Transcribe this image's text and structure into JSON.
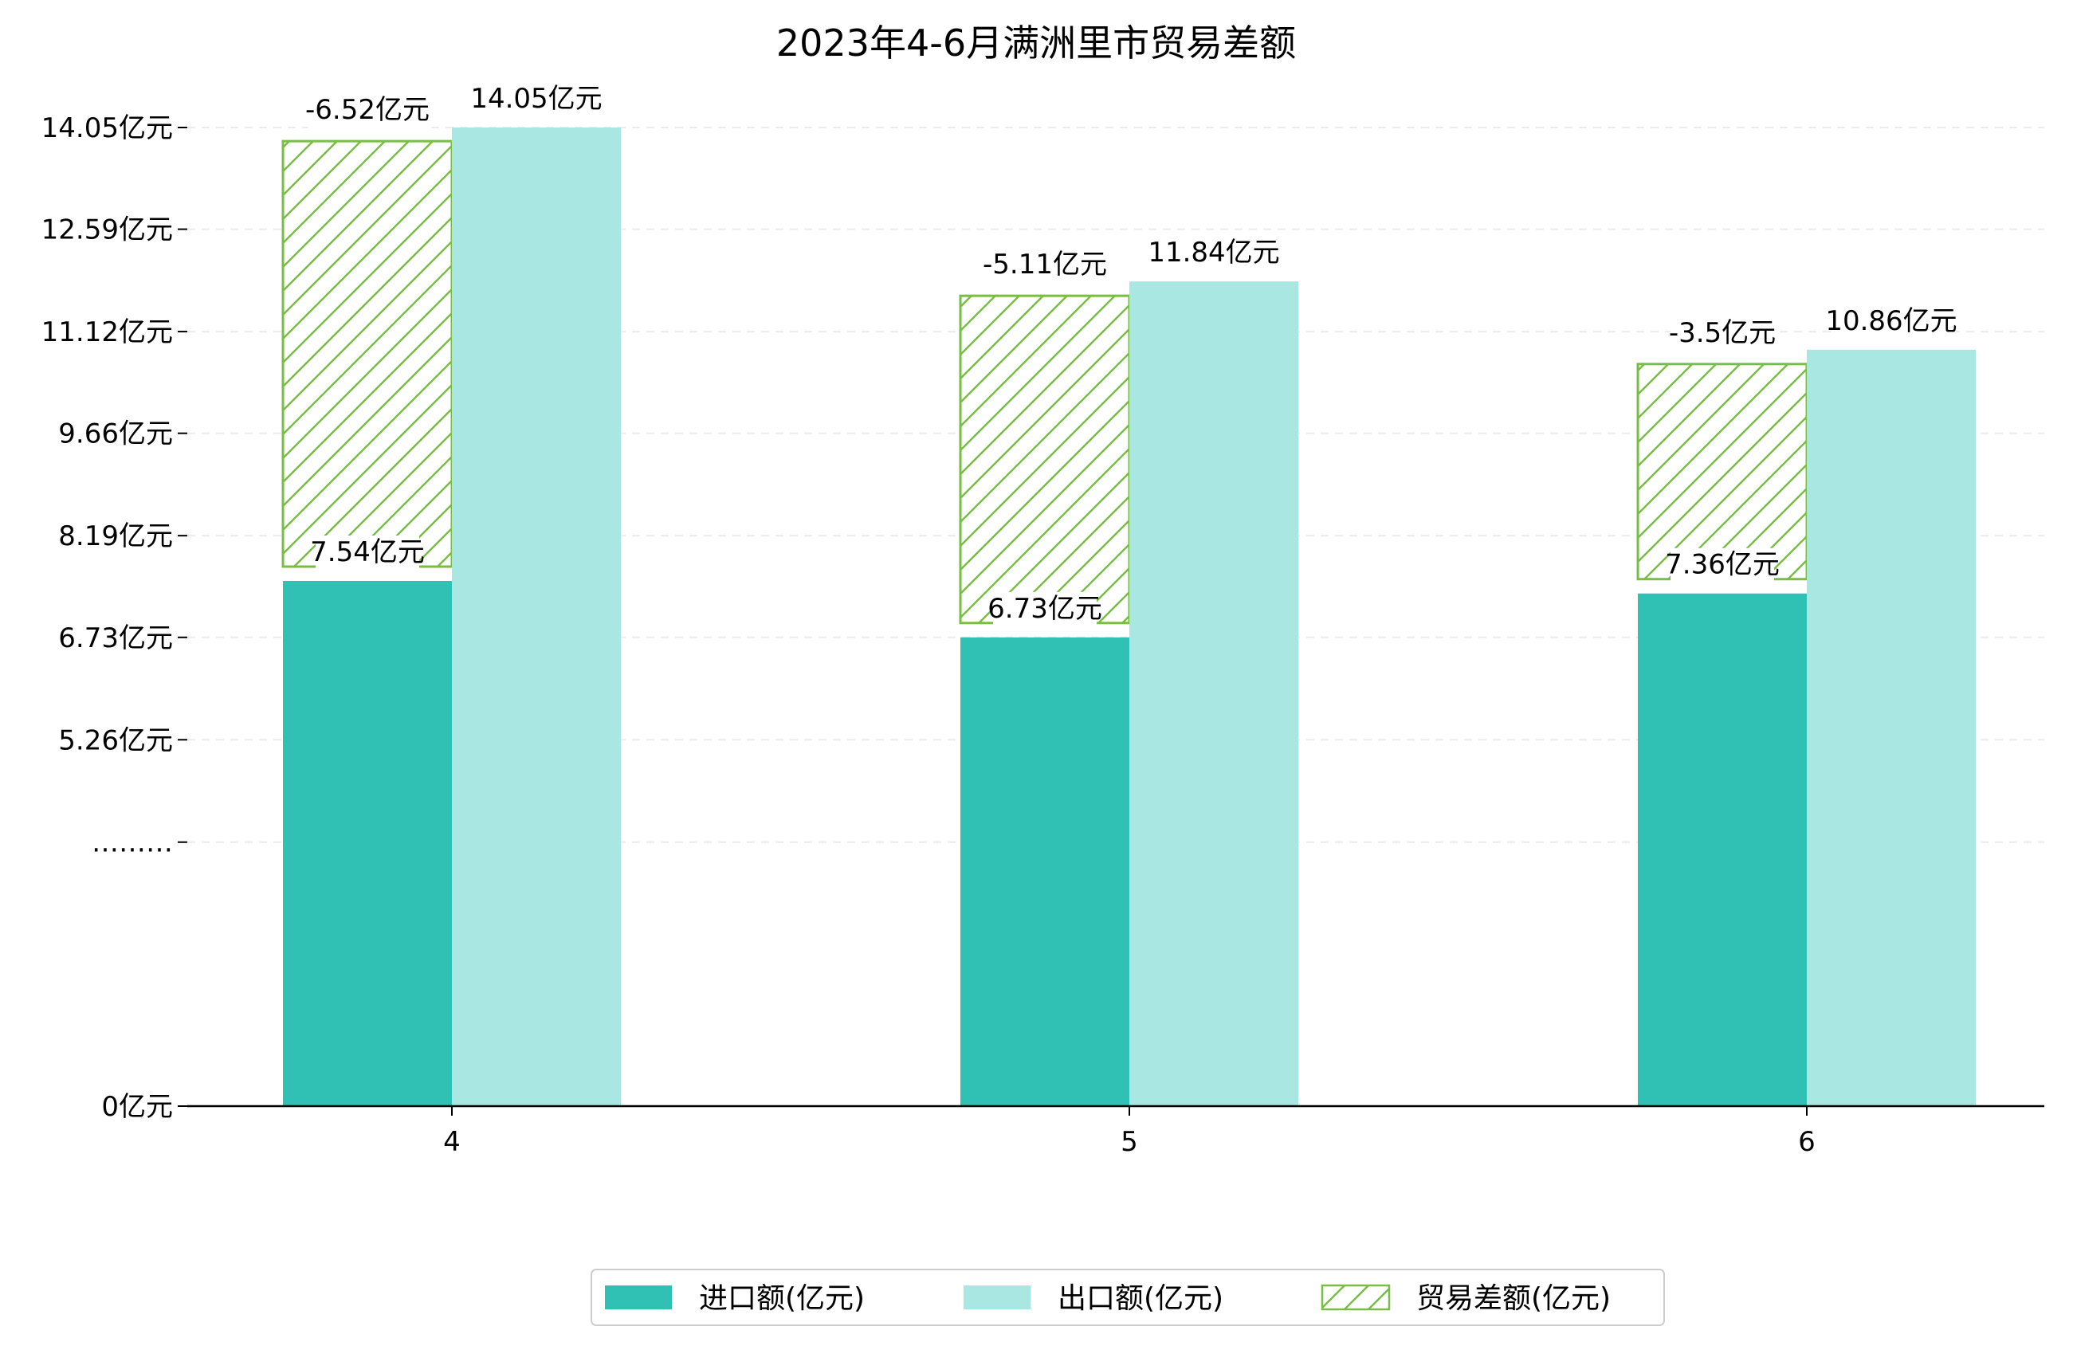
{
  "chart_data": {
    "type": "bar",
    "title": "2023年4-6月满洲里市贸易差额",
    "categories": [
      "4",
      "5",
      "6"
    ],
    "series": [
      {
        "name": "进口额(亿元)",
        "values": [
          7.54,
          6.73,
          7.36
        ],
        "color": "#31c0b4",
        "labels": [
          "7.54亿元",
          "6.73亿元",
          "7.36亿元"
        ]
      },
      {
        "name": "出口额(亿元)",
        "values": [
          14.05,
          11.84,
          10.86
        ],
        "color": "#a8e7e2",
        "labels": [
          "14.05亿元",
          "11.84亿元",
          "10.86亿元"
        ]
      },
      {
        "name": "贸易差额(亿元)",
        "values": [
          -6.52,
          -5.11,
          -3.5
        ],
        "color": "#78bd45",
        "pattern": "hatch",
        "labels": [
          "-6.52亿元",
          "-5.11亿元",
          "-3.5亿元"
        ]
      }
    ],
    "y_ticks": [
      {
        "value": 0,
        "label": "0亿元"
      },
      {
        "value": 3.79,
        "label": "………"
      },
      {
        "value": 5.26,
        "label": "5.26亿元"
      },
      {
        "value": 6.73,
        "label": "6.73亿元"
      },
      {
        "value": 8.19,
        "label": "8.19亿元"
      },
      {
        "value": 9.66,
        "label": "9.66亿元"
      },
      {
        "value": 11.12,
        "label": "11.12亿元"
      },
      {
        "value": 12.59,
        "label": "12.59亿元"
      },
      {
        "value": 14.05,
        "label": "14.05亿元"
      }
    ],
    "ylim": [
      0,
      15
    ],
    "grid": true,
    "legend_position": "bottom-center"
  }
}
